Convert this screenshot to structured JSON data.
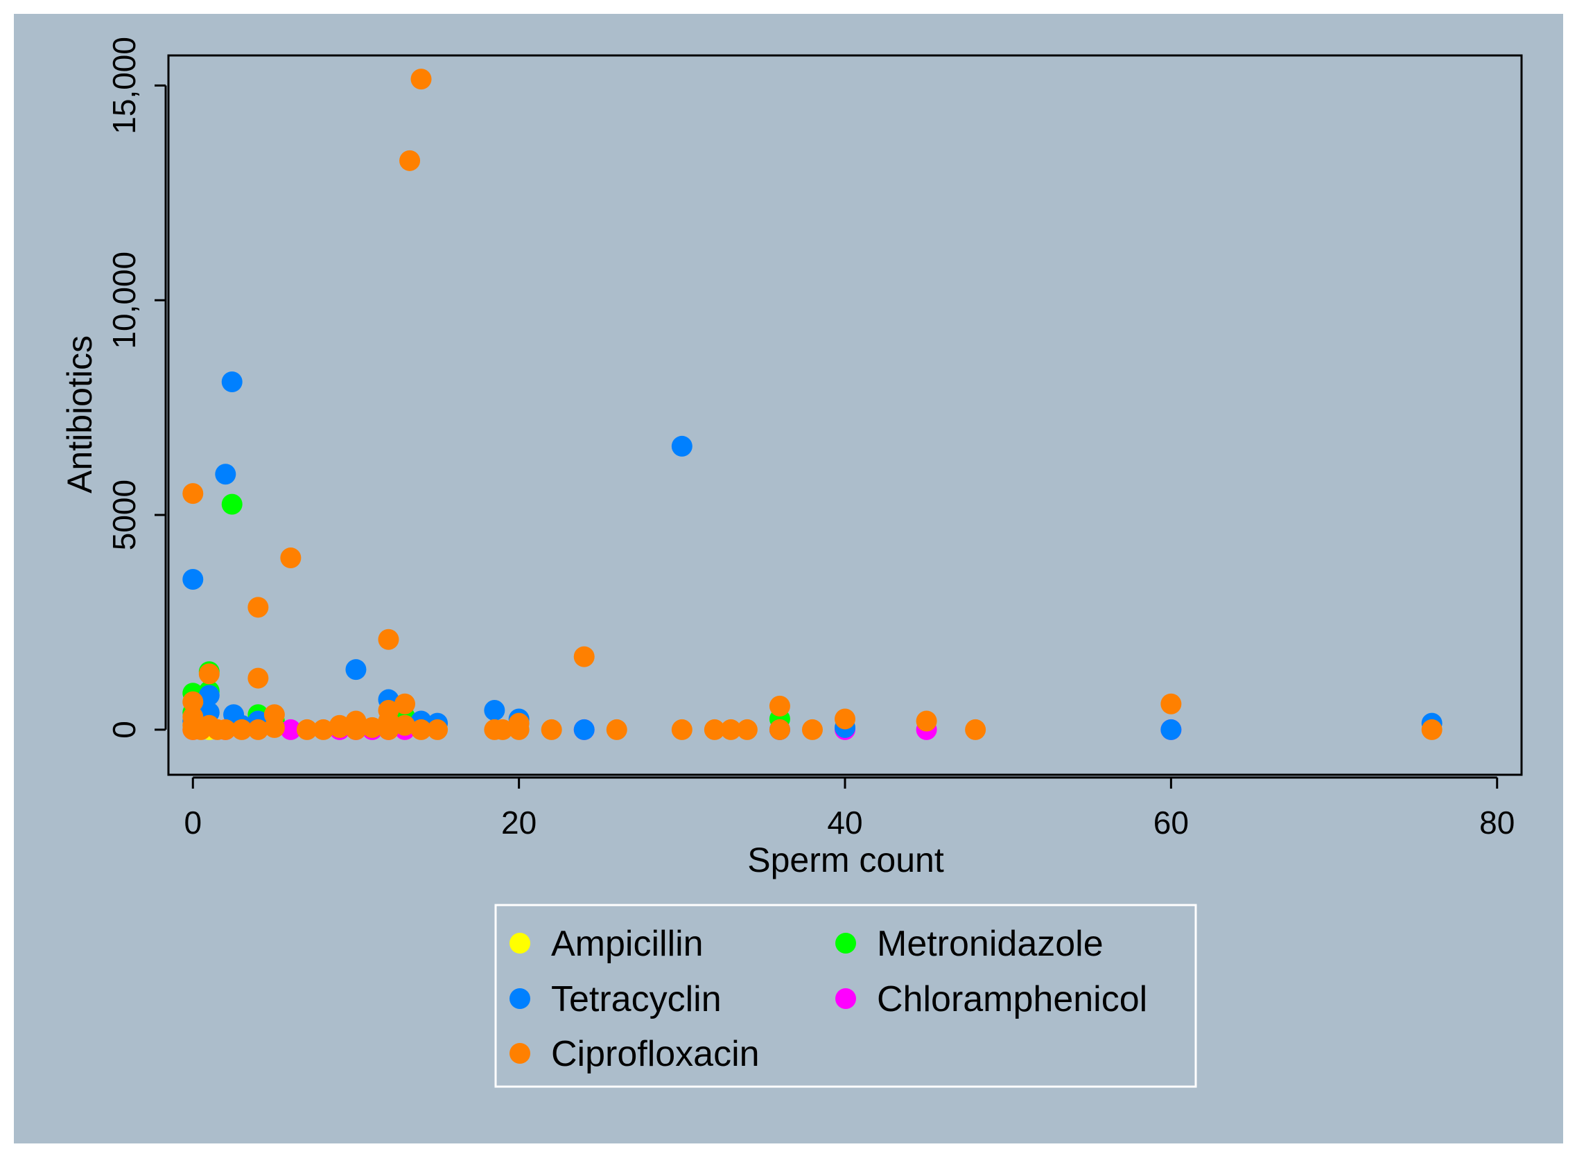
{
  "colors": {
    "outer_bg": "#acbdcb",
    "plot_bg": "#acbdcb",
    "frame": "#000000",
    "legend_bg": "#acbdcb",
    "legend_border": "#ffffff"
  },
  "chart_data": {
    "type": "scatter",
    "title": "",
    "xlabel": "Sperm count",
    "ylabel": "Antibiotics",
    "xlim": [
      -1.5,
      81.5
    ],
    "ylim": [
      -1050,
      15700
    ],
    "x_ticks": [
      0,
      20,
      40,
      60,
      80
    ],
    "x_tick_labels": [
      "0",
      "20",
      "40",
      "60",
      "80"
    ],
    "y_ticks": [
      0,
      5000,
      10000,
      15000
    ],
    "y_tick_labels": [
      "0",
      "5000",
      "10,000",
      "15,000"
    ],
    "grid": false,
    "legend_position": "bottom",
    "series": [
      {
        "name": "Ampicillin",
        "color": "#ffff00",
        "points": [
          [
            0,
            0
          ],
          [
            1,
            0
          ],
          [
            2,
            0
          ],
          [
            12,
            0
          ],
          [
            13,
            0
          ]
        ]
      },
      {
        "name": "Metronidazole",
        "color": "#00ff00",
        "points": [
          [
            0,
            850
          ],
          [
            1,
            900
          ],
          [
            1,
            1350
          ],
          [
            2.4,
            5250
          ],
          [
            4,
            350
          ],
          [
            5,
            200
          ],
          [
            13,
            300
          ],
          [
            36,
            250
          ],
          [
            0,
            400
          ],
          [
            12,
            100
          ]
        ]
      },
      {
        "name": "Chloramphenicol",
        "color": "#ff00ff",
        "points": [
          [
            6,
            0
          ],
          [
            9,
            0
          ],
          [
            11,
            0
          ],
          [
            12,
            0
          ],
          [
            13,
            0
          ],
          [
            24,
            0
          ],
          [
            36,
            0
          ],
          [
            40,
            0
          ],
          [
            45,
            0
          ],
          [
            60,
            0
          ],
          [
            0,
            0
          ],
          [
            2,
            0
          ],
          [
            10,
            0
          ]
        ]
      },
      {
        "name": "Tetracyclin",
        "color": "#0080ff",
        "points": [
          [
            0,
            3500
          ],
          [
            2,
            5950
          ],
          [
            2.4,
            8100
          ],
          [
            30,
            6600
          ],
          [
            10,
            1400
          ],
          [
            1,
            800
          ],
          [
            1,
            400
          ],
          [
            2.5,
            350
          ],
          [
            4,
            200
          ],
          [
            12,
            700
          ],
          [
            14,
            200
          ],
          [
            15,
            150
          ],
          [
            18.5,
            450
          ],
          [
            20,
            250
          ],
          [
            76,
            150
          ],
          [
            0,
            200
          ],
          [
            24,
            0
          ],
          [
            36,
            0
          ],
          [
            40,
            50
          ],
          [
            60,
            0
          ],
          [
            3,
            100
          ]
        ]
      },
      {
        "name": "Ciprofloxacin",
        "color": "#ff8000",
        "points": [
          [
            14,
            15150
          ],
          [
            13.3,
            13250
          ],
          [
            0,
            5500
          ],
          [
            6,
            4000
          ],
          [
            4,
            2850
          ],
          [
            12,
            2100
          ],
          [
            24,
            1700
          ],
          [
            1,
            1300
          ],
          [
            4,
            1200
          ],
          [
            0,
            650
          ],
          [
            0,
            300
          ],
          [
            0,
            100
          ],
          [
            0,
            0
          ],
          [
            0.5,
            0
          ],
          [
            1,
            100
          ],
          [
            1.5,
            0
          ],
          [
            2,
            0
          ],
          [
            3,
            0
          ],
          [
            4,
            0
          ],
          [
            5,
            50
          ],
          [
            5,
            350
          ],
          [
            7,
            0
          ],
          [
            8,
            0
          ],
          [
            9,
            50
          ],
          [
            9,
            100
          ],
          [
            10,
            0
          ],
          [
            10,
            200
          ],
          [
            11,
            50
          ],
          [
            12,
            0
          ],
          [
            12,
            200
          ],
          [
            12,
            450
          ],
          [
            13,
            600
          ],
          [
            13,
            100
          ],
          [
            14,
            0
          ],
          [
            15,
            0
          ],
          [
            18.5,
            0
          ],
          [
            19,
            0
          ],
          [
            20,
            0
          ],
          [
            20,
            150
          ],
          [
            22,
            0
          ],
          [
            26,
            0
          ],
          [
            30,
            0
          ],
          [
            32,
            0
          ],
          [
            33,
            0
          ],
          [
            34,
            0
          ],
          [
            36,
            550
          ],
          [
            36,
            0
          ],
          [
            38,
            0
          ],
          [
            40,
            250
          ],
          [
            45,
            200
          ],
          [
            48,
            0
          ],
          [
            60,
            600
          ],
          [
            76,
            0
          ]
        ]
      }
    ],
    "legend": {
      "columns": [
        [
          "Ampicillin",
          "Tetracyclin",
          "Ciprofloxacin"
        ],
        [
          "Metronidazole",
          "Chloramphenicol"
        ]
      ]
    }
  }
}
